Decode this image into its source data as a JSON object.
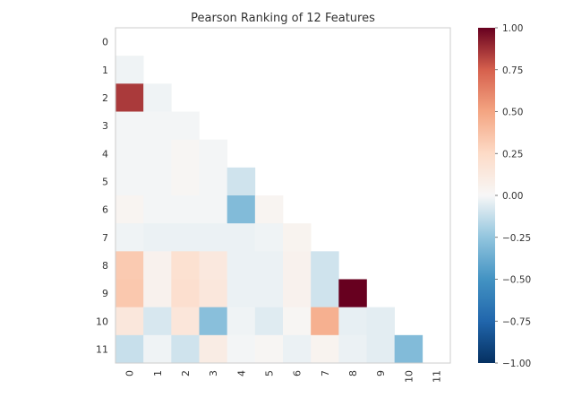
{
  "chart_data": {
    "type": "heatmap",
    "title": "Pearson Ranking of 12 Features",
    "xlabel": "",
    "ylabel": "",
    "row_labels": [
      "0",
      "1",
      "2",
      "3",
      "4",
      "5",
      "6",
      "7",
      "8",
      "9",
      "10",
      "11"
    ],
    "col_labels": [
      "0",
      "1",
      "2",
      "3",
      "4",
      "5",
      "6",
      "7",
      "8",
      "9",
      "10",
      "11"
    ],
    "mask": "lower triangle only; diagonal and upper triangle blank",
    "values": [
      [],
      [
        -0.02
      ],
      [
        0.85,
        -0.02
      ],
      [
        -0.01,
        -0.01,
        -0.01
      ],
      [
        -0.01,
        -0.01,
        0.02,
        -0.01
      ],
      [
        -0.01,
        -0.01,
        0.02,
        -0.01,
        -0.1
      ],
      [
        0.03,
        -0.01,
        -0.01,
        -0.01,
        -0.3,
        0.03
      ],
      [
        -0.02,
        -0.03,
        -0.03,
        -0.03,
        -0.03,
        -0.02,
        0.04
      ],
      [
        0.33,
        0.05,
        0.2,
        0.13,
        -0.03,
        -0.03,
        0.05,
        -0.1
      ],
      [
        0.34,
        0.05,
        0.21,
        0.14,
        -0.03,
        -0.03,
        0.05,
        -0.1,
        1.0
      ],
      [
        0.14,
        -0.08,
        0.15,
        -0.28,
        -0.02,
        -0.06,
        0.02,
        0.45,
        -0.04,
        -0.05
      ],
      [
        -0.12,
        -0.02,
        -0.1,
        0.1,
        -0.01,
        0.02,
        -0.03,
        0.04,
        -0.03,
        -0.05,
        -0.3
      ]
    ],
    "colorbar": {
      "min": -1.0,
      "max": 1.0,
      "ticks": [
        1.0,
        0.75,
        0.5,
        0.25,
        0.0,
        -0.25,
        -0.5,
        -0.75,
        -1.0
      ],
      "tick_labels": [
        "1.00",
        "0.75",
        "0.50",
        "0.25",
        "0.00",
        "−0.25",
        "−0.50",
        "−0.75",
        "−1.00"
      ],
      "colormap": "RdBu_r"
    },
    "grid": false
  }
}
